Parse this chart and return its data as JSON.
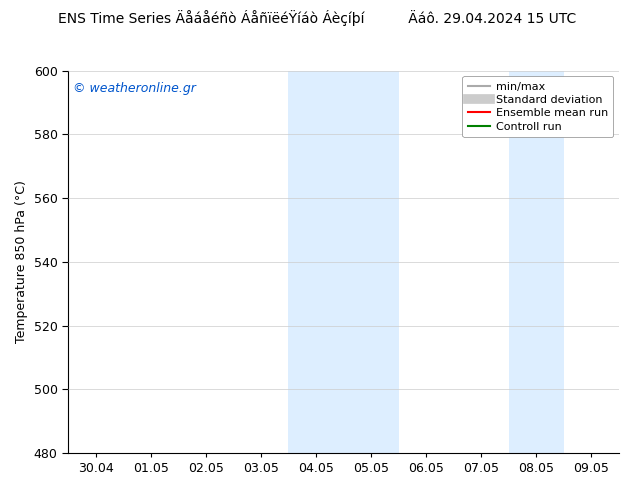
{
  "title": "ENS Time Series Äåáåéñò ÁåñïëéŸíáò Áèçíþí          Äáô. 29.04.2024 15 UTC",
  "ylabel": "Temperature 850 hPa (°C)",
  "watermark": "© weatheronline.gr",
  "ylim": [
    480,
    600
  ],
  "yticks": [
    480,
    500,
    520,
    540,
    560,
    580,
    600
  ],
  "xtick_positions": [
    0,
    1,
    2,
    3,
    4,
    5,
    6,
    7,
    8,
    9
  ],
  "xtick_labels": [
    "30.04",
    "01.05",
    "02.05",
    "03.05",
    "04.05",
    "05.05",
    "06.05",
    "07.05",
    "08.05",
    "09.05"
  ],
  "xlim": [
    -0.5,
    9.5
  ],
  "shaded_regions": [
    {
      "x_start": 3.5,
      "x_end": 5.5,
      "color": "#ddeeff"
    },
    {
      "x_start": 7.5,
      "x_end": 8.5,
      "color": "#ddeeff"
    }
  ],
  "legend_entries": [
    {
      "label": "min/max",
      "color": "#aaaaaa",
      "lw": 1.5
    },
    {
      "label": "Standard deviation",
      "color": "#cccccc",
      "lw": 7
    },
    {
      "label": "Ensemble mean run",
      "color": "red",
      "lw": 1.5
    },
    {
      "label": "Controll run",
      "color": "green",
      "lw": 1.5
    }
  ],
  "background_color": "#ffffff",
  "title_fontsize": 10,
  "watermark_color": "#0055cc",
  "axis_label_fontsize": 9,
  "tick_fontsize": 9,
  "legend_fontsize": 8
}
